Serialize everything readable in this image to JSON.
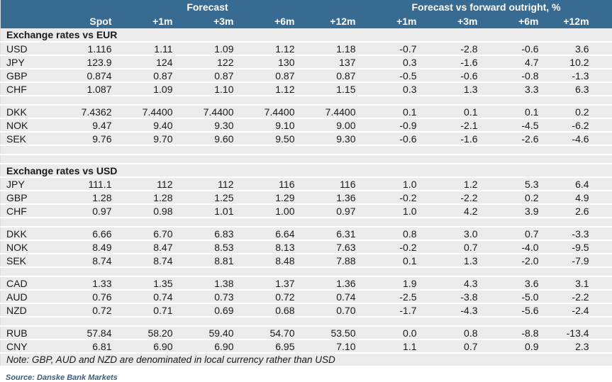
{
  "colors": {
    "header_bg": "#376B92",
    "header_text": "#FFFFFF",
    "row_bg": "#EBEBEB",
    "body_text": "#1A1A1A",
    "source_text": "#3D5C7D"
  },
  "chart_data": {
    "type": "table",
    "title_groups": [
      {
        "label": "Forecast",
        "span": 5
      },
      {
        "label": "Forecast vs forward outright, %",
        "span": 4
      }
    ],
    "columns": [
      "Spot",
      "+1m",
      "+3m",
      "+6m",
      "+12m",
      "+1m",
      "+3m",
      "+6m",
      "+12m"
    ],
    "sections": [
      {
        "title": "Exchange rates vs EUR",
        "groups": [
          [
            {
              "currency": "USD",
              "values": [
                "1.116",
                "1.11",
                "1.09",
                "1.12",
                "1.18",
                "-0.7",
                "-2.8",
                "-0.6",
                "3.6"
              ]
            },
            {
              "currency": "JPY",
              "values": [
                "123.9",
                "124",
                "122",
                "130",
                "137",
                "0.3",
                "-1.6",
                "4.7",
                "10.2"
              ]
            },
            {
              "currency": "GBP",
              "values": [
                "0.874",
                "0.87",
                "0.87",
                "0.87",
                "0.87",
                "-0.5",
                "-0.6",
                "-0.8",
                "-1.3"
              ]
            },
            {
              "currency": "CHF",
              "values": [
                "1.087",
                "1.09",
                "1.10",
                "1.12",
                "1.15",
                "0.3",
                "1.3",
                "3.3",
                "6.3"
              ]
            }
          ],
          [
            {
              "currency": "DKK",
              "values": [
                "7.4362",
                "7.4400",
                "7.4400",
                "7.4400",
                "7.4400",
                "0.1",
                "0.1",
                "0.1",
                "0.2"
              ]
            },
            {
              "currency": "NOK",
              "values": [
                "9.47",
                "9.40",
                "9.30",
                "9.10",
                "9.00",
                "-0.9",
                "-2.1",
                "-4.5",
                "-6.2"
              ]
            },
            {
              "currency": "SEK",
              "values": [
                "9.76",
                "9.70",
                "9.60",
                "9.50",
                "9.30",
                "-0.6",
                "-1.6",
                "-2.6",
                "-4.6"
              ]
            }
          ]
        ]
      },
      {
        "title": "Exchange rates vs USD",
        "groups": [
          [
            {
              "currency": "JPY",
              "values": [
                "111.1",
                "112",
                "112",
                "116",
                "116",
                "1.0",
                "1.2",
                "5.3",
                "6.4"
              ]
            },
            {
              "currency": "GBP",
              "values": [
                "1.28",
                "1.28",
                "1.25",
                "1.29",
                "1.36",
                "-0.2",
                "-2.2",
                "0.2",
                "4.9"
              ]
            },
            {
              "currency": "CHF",
              "values": [
                "0.97",
                "0.98",
                "1.01",
                "1.00",
                "0.97",
                "1.0",
                "4.2",
                "3.9",
                "2.6"
              ]
            }
          ],
          [
            {
              "currency": "DKK",
              "values": [
                "6.66",
                "6.70",
                "6.83",
                "6.64",
                "6.31",
                "0.8",
                "3.0",
                "0.7",
                "-3.3"
              ]
            },
            {
              "currency": "NOK",
              "values": [
                "8.49",
                "8.47",
                "8.53",
                "8.13",
                "7.63",
                "-0.2",
                "0.7",
                "-4.0",
                "-9.5"
              ]
            },
            {
              "currency": "SEK",
              "values": [
                "8.74",
                "8.74",
                "8.81",
                "8.48",
                "7.88",
                "0.1",
                "1.3",
                "-2.0",
                "-7.9"
              ]
            }
          ],
          [
            {
              "currency": "CAD",
              "values": [
                "1.33",
                "1.35",
                "1.38",
                "1.37",
                "1.36",
                "1.9",
                "4.3",
                "3.6",
                "3.1"
              ]
            },
            {
              "currency": "AUD",
              "values": [
                "0.76",
                "0.74",
                "0.73",
                "0.72",
                "0.74",
                "-2.5",
                "-3.8",
                "-5.0",
                "-2.2"
              ]
            },
            {
              "currency": "NZD",
              "values": [
                "0.72",
                "0.71",
                "0.69",
                "0.68",
                "0.70",
                "-1.7",
                "-4.3",
                "-5.6",
                "-2.4"
              ]
            }
          ],
          [
            {
              "currency": "RUB",
              "values": [
                "57.84",
                "58.20",
                "59.40",
                "54.70",
                "53.50",
                "0.0",
                "0.8",
                "-8.8",
                "-13.4"
              ]
            },
            {
              "currency": "CNY",
              "values": [
                "6.81",
                "6.90",
                "6.90",
                "6.95",
                "7.10",
                "1.1",
                "0.7",
                "0.9",
                "2.3"
              ]
            }
          ]
        ]
      }
    ],
    "note": "Note: GBP, AUD and NZD are denominated in local currency rather than USD",
    "source": "Source: Danske Bank Markets"
  }
}
